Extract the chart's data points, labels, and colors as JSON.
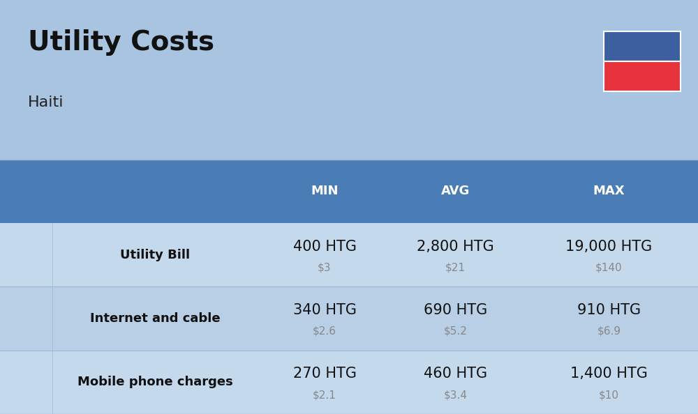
{
  "title": "Utility Costs",
  "subtitle": "Haiti",
  "background_color": "#a8c4e0",
  "header_bg_color": "#4a7cb5",
  "header_text_color": "#ffffff",
  "row_bg_color_1": "#c5d9ed",
  "row_bg_color_2": "#b8cfe6",
  "col_headers": [
    "MIN",
    "AVG",
    "MAX"
  ],
  "rows": [
    {
      "label": "Utility Bill",
      "min_htg": "400 HTG",
      "min_usd": "$3",
      "avg_htg": "2,800 HTG",
      "avg_usd": "$21",
      "max_htg": "19,000 HTG",
      "max_usd": "$140"
    },
    {
      "label": "Internet and cable",
      "min_htg": "340 HTG",
      "min_usd": "$2.6",
      "avg_htg": "690 HTG",
      "avg_usd": "$5.2",
      "max_htg": "910 HTG",
      "max_usd": "$6.9"
    },
    {
      "label": "Mobile phone charges",
      "min_htg": "270 HTG",
      "min_usd": "$2.1",
      "avg_htg": "460 HTG",
      "avg_usd": "$3.4",
      "max_htg": "1,400 HTG",
      "max_usd": "$10"
    }
  ],
  "flag_blue": "#3d5fa0",
  "flag_red": "#e8333c",
  "usd_color": "#888888",
  "label_font_size": 13,
  "header_font_size": 13,
  "htg_font_size": 15,
  "usd_font_size": 11,
  "title_font_size": 28,
  "subtitle_font_size": 16,
  "separator_color": "#9ab8d4"
}
